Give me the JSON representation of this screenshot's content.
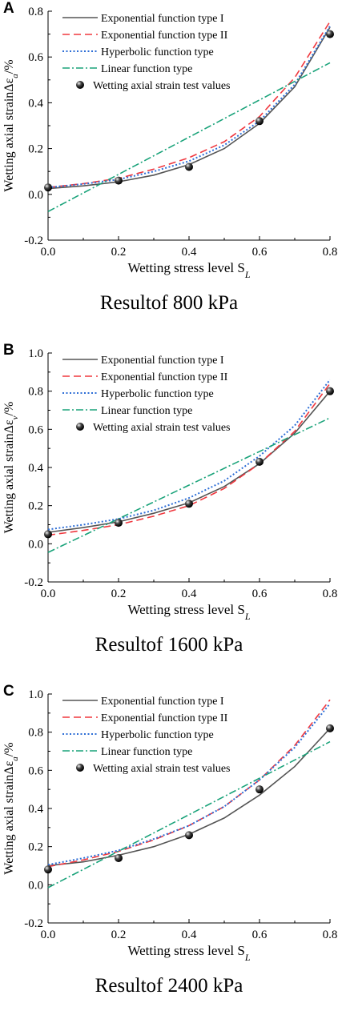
{
  "chart_data": [
    {
      "panel_label": "A",
      "caption": "Resultof 800 kPa",
      "type": "line",
      "xlabel": "Wetting stress level S",
      "xlabel_sub": "L",
      "ylabel": "Wetting axial strainΔε",
      "ylabel_sub": "a",
      "ylabel_suffix": "/%",
      "xlim": [
        0,
        0.8
      ],
      "ylim": [
        -0.2,
        0.8
      ],
      "xticks": [
        "0.0",
        "0.2",
        "0.4",
        "0.6",
        "0.8"
      ],
      "yticks": [
        "-0.2",
        "0.0",
        "0.2",
        "0.4",
        "0.6",
        "0.8"
      ],
      "series": [
        {
          "name": "Exponential function type I",
          "color": "#555555",
          "dash": "solid",
          "x": [
            0,
            0.1,
            0.2,
            0.3,
            0.4,
            0.5,
            0.6,
            0.7,
            0.8
          ],
          "y": [
            0.025,
            0.037,
            0.055,
            0.084,
            0.13,
            0.2,
            0.31,
            0.47,
            0.73
          ]
        },
        {
          "name": "Exponential function type II",
          "color": "#f0383f",
          "dash": "dashed",
          "x": [
            0,
            0.1,
            0.2,
            0.3,
            0.4,
            0.5,
            0.6,
            0.7,
            0.8
          ],
          "y": [
            0.03,
            0.047,
            0.07,
            0.11,
            0.16,
            0.23,
            0.34,
            0.51,
            0.755
          ]
        },
        {
          "name": "Hyperbolic function type",
          "color": "#2f6fd6",
          "dash": "dotted",
          "x": [
            0,
            0.1,
            0.2,
            0.3,
            0.4,
            0.5,
            0.6,
            0.7,
            0.8
          ],
          "y": [
            0.03,
            0.045,
            0.065,
            0.1,
            0.145,
            0.215,
            0.32,
            0.48,
            0.735
          ]
        },
        {
          "name": "Linear function type",
          "color": "#1aa37a",
          "dash": "dashdot",
          "x": [
            0,
            0.8
          ],
          "y": [
            -0.075,
            0.575
          ]
        },
        {
          "name": "Wetting axial strain test values",
          "marker": "sphere",
          "x": [
            0,
            0.2,
            0.4,
            0.6,
            0.8
          ],
          "y": [
            0.03,
            0.06,
            0.12,
            0.32,
            0.7
          ]
        }
      ]
    },
    {
      "panel_label": "B",
      "caption": "Resultof 1600 kPa",
      "type": "line",
      "xlabel": "Wetting stress level S",
      "xlabel_sub": "L",
      "ylabel": "Wetting axial strainΔε",
      "ylabel_sub": "v",
      "ylabel_suffix": "/%",
      "xlim": [
        0,
        0.8
      ],
      "ylim": [
        -0.2,
        1.0
      ],
      "xticks": [
        "0.0",
        "0.2",
        "0.4",
        "0.6",
        "0.8"
      ],
      "yticks": [
        "-0.2",
        "0.0",
        "0.2",
        "0.4",
        "0.6",
        "0.8",
        "1.0"
      ],
      "series": [
        {
          "name": "Exponential function type I",
          "color": "#555555",
          "dash": "solid",
          "x": [
            0,
            0.1,
            0.2,
            0.3,
            0.4,
            0.5,
            0.6,
            0.7,
            0.8
          ],
          "y": [
            0.06,
            0.085,
            0.115,
            0.16,
            0.215,
            0.3,
            0.42,
            0.58,
            0.8
          ]
        },
        {
          "name": "Exponential function type II",
          "color": "#f0383f",
          "dash": "dashed",
          "x": [
            0,
            0.1,
            0.2,
            0.3,
            0.4,
            0.5,
            0.6,
            0.7,
            0.8
          ],
          "y": [
            0.045,
            0.07,
            0.1,
            0.145,
            0.2,
            0.29,
            0.42,
            0.59,
            0.84
          ]
        },
        {
          "name": "Hyperbolic function type",
          "color": "#2f6fd6",
          "dash": "dotted",
          "x": [
            0,
            0.1,
            0.2,
            0.3,
            0.4,
            0.5,
            0.6,
            0.7,
            0.8
          ],
          "y": [
            0.075,
            0.1,
            0.13,
            0.175,
            0.24,
            0.33,
            0.46,
            0.62,
            0.86
          ]
        },
        {
          "name": "Linear function type",
          "color": "#1aa37a",
          "dash": "dashdot",
          "x": [
            0,
            0.8
          ],
          "y": [
            -0.045,
            0.66
          ]
        },
        {
          "name": "Wetting axial strain test values",
          "marker": "sphere",
          "x": [
            0,
            0.2,
            0.4,
            0.6,
            0.8
          ],
          "y": [
            0.05,
            0.11,
            0.21,
            0.43,
            0.8
          ]
        }
      ]
    },
    {
      "panel_label": "C",
      "caption": "Resultof 2400 kPa",
      "type": "line",
      "xlabel": "Wetting stress level S",
      "xlabel_sub": "L",
      "ylabel": "Wetting axial strainΔε",
      "ylabel_sub": "a",
      "ylabel_suffix": "/%",
      "xlim": [
        0,
        0.8
      ],
      "ylim": [
        -0.2,
        1.0
      ],
      "xticks": [
        "0.0",
        "0.2",
        "0.4",
        "0.6",
        "0.8"
      ],
      "yticks": [
        "-0.2",
        "0.0",
        "0.2",
        "0.4",
        "0.6",
        "0.8",
        "1.0"
      ],
      "series": [
        {
          "name": "Exponential function type I",
          "color": "#555555",
          "dash": "solid",
          "x": [
            0,
            0.1,
            0.2,
            0.3,
            0.4,
            0.5,
            0.6,
            0.7,
            0.8
          ],
          "y": [
            0.1,
            0.12,
            0.155,
            0.2,
            0.265,
            0.35,
            0.47,
            0.62,
            0.82
          ]
        },
        {
          "name": "Exponential function type II",
          "color": "#f0383f",
          "dash": "dashed",
          "x": [
            0,
            0.1,
            0.2,
            0.3,
            0.4,
            0.5,
            0.6,
            0.7,
            0.8
          ],
          "y": [
            0.095,
            0.13,
            0.175,
            0.235,
            0.31,
            0.41,
            0.55,
            0.73,
            0.97
          ]
        },
        {
          "name": "Hyperbolic function type",
          "color": "#2f6fd6",
          "dash": "dotted",
          "x": [
            0,
            0.1,
            0.2,
            0.3,
            0.4,
            0.5,
            0.6,
            0.7,
            0.8
          ],
          "y": [
            0.105,
            0.14,
            0.18,
            0.24,
            0.31,
            0.41,
            0.55,
            0.72,
            0.95
          ]
        },
        {
          "name": "Linear function type",
          "color": "#1aa37a",
          "dash": "dashdot",
          "x": [
            0,
            0.8
          ],
          "y": [
            -0.015,
            0.75
          ]
        },
        {
          "name": "Wetting axial strain test values",
          "marker": "sphere",
          "x": [
            0,
            0.2,
            0.4,
            0.6,
            0.8
          ],
          "y": [
            0.08,
            0.14,
            0.26,
            0.5,
            0.82
          ]
        }
      ]
    }
  ]
}
